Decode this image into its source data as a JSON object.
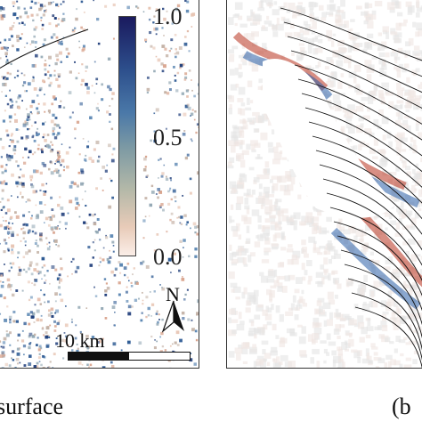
{
  "left_panel": {
    "colorbar": {
      "ticks": [
        "1.0",
        "0.5",
        "0.0"
      ],
      "colors": [
        "#1a1a5e",
        "#2d4f8c",
        "#4a78a8",
        "#7d9aa4",
        "#b3b8a8",
        "#e8cbb8",
        "#fbeee8"
      ]
    },
    "scale_bar": {
      "label": "10 km"
    },
    "north_arrow": {
      "label": "N"
    },
    "caption": "surface"
  },
  "right_panel": {
    "caption": "(b"
  },
  "colors": {
    "red": "#b8331f",
    "blue": "#2a5fa8",
    "gray_void": "#e2e2e2",
    "stroke": "#111111"
  }
}
